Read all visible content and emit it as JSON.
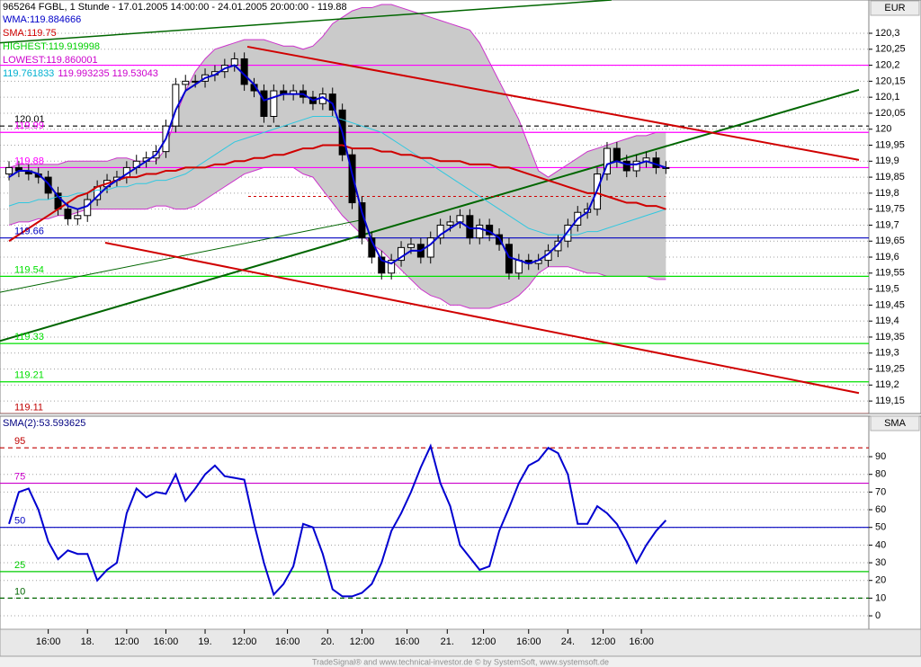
{
  "header": {
    "title": "965264  FGBL, 1 Stunde - 17.01.2005 14:00:00 - 24.01.2005 20:00:00 - 119.88",
    "currency": "EUR"
  },
  "legend": [
    [
      {
        "text": "WMA:119.884666",
        "color": "#0000c8"
      }
    ],
    [
      {
        "text": "SMA:119.75",
        "color": "#d00000"
      }
    ],
    [
      {
        "text": "HIGHEST:119.919998",
        "color": "#00d000"
      }
    ],
    [
      {
        "text": "LOWEST:119.860001",
        "color": "#cc00cc"
      }
    ],
    [
      {
        "text": "119.761833",
        "color": "#00b0d0"
      },
      {
        "text": "119.993235 119.53043",
        "color": "#cc00cc"
      }
    ]
  ],
  "footer": "TradeSignal® and www.technical-investor.de © by SystemSoft, www.systemsoft.de",
  "chart_data": [
    {
      "type": "candlestick",
      "open": [
        119.86,
        119.88,
        119.87,
        119.86,
        119.85,
        119.8,
        119.75,
        119.72,
        119.73,
        119.78,
        119.82,
        119.84,
        119.85,
        119.88,
        119.9,
        119.91,
        119.93,
        120.01,
        120.14,
        120.15,
        120.15,
        120.17,
        120.18,
        120.2,
        120.22,
        120.14,
        120.12,
        120.04,
        120.12,
        120.11,
        120.12,
        120.1,
        120.08,
        120.11,
        120.06,
        119.92,
        119.77,
        119.66,
        119.6,
        119.55,
        119.59,
        119.63,
        119.64,
        119.6,
        119.66,
        119.7,
        119.71,
        119.73,
        119.66,
        119.7,
        119.67,
        119.64,
        119.55,
        119.59,
        119.58,
        119.59,
        119.62,
        119.65,
        119.7,
        119.74,
        119.75,
        119.86,
        119.94,
        119.9,
        119.87,
        119.9,
        119.91,
        119.88
      ],
      "high": [
        119.9,
        119.9,
        119.89,
        119.88,
        119.87,
        119.82,
        119.77,
        119.75,
        119.8,
        119.84,
        119.86,
        119.87,
        119.9,
        119.92,
        119.93,
        119.95,
        120.03,
        120.16,
        120.17,
        120.17,
        120.19,
        120.2,
        120.22,
        120.24,
        120.24,
        120.16,
        120.14,
        120.14,
        120.14,
        120.14,
        120.14,
        120.12,
        120.13,
        120.13,
        120.08,
        119.94,
        119.79,
        119.68,
        119.62,
        119.61,
        119.65,
        119.66,
        119.66,
        119.68,
        119.72,
        119.73,
        119.75,
        119.75,
        119.72,
        119.72,
        119.69,
        119.66,
        119.61,
        119.61,
        119.61,
        119.64,
        119.67,
        119.72,
        119.76,
        119.77,
        119.88,
        119.96,
        119.96,
        119.92,
        119.92,
        119.93,
        119.93,
        119.9
      ],
      "low": [
        119.84,
        119.85,
        119.84,
        119.83,
        119.78,
        119.73,
        119.7,
        119.7,
        119.71,
        119.76,
        119.8,
        119.82,
        119.83,
        119.86,
        119.88,
        119.89,
        119.91,
        119.99,
        120.12,
        120.13,
        120.13,
        120.15,
        120.16,
        120.18,
        120.12,
        120.1,
        120.02,
        120.02,
        120.09,
        120.09,
        120.08,
        120.06,
        120.06,
        120.04,
        119.9,
        119.75,
        119.64,
        119.58,
        119.53,
        119.53,
        119.57,
        119.61,
        119.58,
        119.58,
        119.64,
        119.68,
        119.69,
        119.64,
        119.64,
        119.65,
        119.62,
        119.53,
        119.53,
        119.56,
        119.56,
        119.57,
        119.6,
        119.63,
        119.68,
        119.72,
        119.73,
        119.84,
        119.88,
        119.85,
        119.85,
        119.88,
        119.86,
        119.86
      ],
      "close": [
        119.88,
        119.87,
        119.86,
        119.85,
        119.8,
        119.75,
        119.72,
        119.73,
        119.78,
        119.82,
        119.84,
        119.85,
        119.88,
        119.9,
        119.91,
        119.93,
        120.01,
        120.14,
        120.15,
        120.15,
        120.17,
        120.18,
        120.2,
        120.22,
        120.14,
        120.12,
        120.04,
        120.12,
        120.11,
        120.12,
        120.1,
        120.08,
        120.11,
        120.06,
        119.92,
        119.77,
        119.66,
        119.6,
        119.55,
        119.59,
        119.63,
        119.64,
        119.6,
        119.66,
        119.7,
        119.71,
        119.73,
        119.66,
        119.7,
        119.67,
        119.64,
        119.55,
        119.59,
        119.58,
        119.59,
        119.62,
        119.65,
        119.7,
        119.74,
        119.75,
        119.86,
        119.94,
        119.9,
        119.87,
        119.9,
        119.91,
        119.88,
        119.88
      ],
      "up_color": "#ffffff",
      "down_color": "#000000",
      "xlim": [
        -0.92,
        87.7
      ],
      "xticks": [
        {
          "value": 4,
          "label": "16:00"
        },
        {
          "value": 8,
          "label": "18."
        },
        {
          "value": 12,
          "label": "12:00"
        },
        {
          "value": 16,
          "label": "16:00"
        },
        {
          "value": 20,
          "label": "19."
        },
        {
          "value": 24,
          "label": "12:00"
        },
        {
          "value": 28.4,
          "label": "16:00"
        },
        {
          "value": 32.5,
          "label": "20."
        },
        {
          "value": 36,
          "label": "12:00"
        },
        {
          "value": 40.6,
          "label": "16:00"
        },
        {
          "value": 44.7,
          "label": "21."
        },
        {
          "value": 48.4,
          "label": "12:00"
        },
        {
          "value": 53,
          "label": "16:00"
        },
        {
          "value": 57,
          "label": "24."
        },
        {
          "value": 60.6,
          "label": "12:00"
        },
        {
          "value": 64.5,
          "label": "16:00"
        }
      ],
      "ylim": [
        119.111,
        120.404
      ],
      "yticks": [
        {
          "value": 120.3,
          "label": "120,3"
        },
        {
          "value": 120.25,
          "label": "120,25"
        },
        {
          "value": 120.2,
          "label": "120,2"
        },
        {
          "value": 120.15,
          "label": "120,15"
        },
        {
          "value": 120.1,
          "label": "120,1"
        },
        {
          "value": 120.05,
          "label": "120,05"
        },
        120,
        {
          "value": 119.95,
          "label": "119,95"
        },
        {
          "value": 119.9,
          "label": "119,9"
        },
        {
          "value": 119.85,
          "label": "119,85"
        },
        {
          "value": 119.8,
          "label": "119,8"
        },
        {
          "value": 119.75,
          "label": "119,75"
        },
        {
          "value": 119.7,
          "label": "119,7"
        },
        {
          "value": 119.65,
          "label": "119,65"
        },
        {
          "value": 119.6,
          "label": "119,6"
        },
        {
          "value": 119.55,
          "label": "119,55"
        },
        {
          "value": 119.5,
          "label": "119,5"
        },
        {
          "value": 119.45,
          "label": "119,45"
        },
        {
          "value": 119.4,
          "label": "119,4"
        },
        {
          "value": 119.35,
          "label": "119,35"
        },
        {
          "value": 119.3,
          "label": "119,3"
        },
        {
          "value": 119.25,
          "label": "119,25"
        },
        {
          "value": 119.2,
          "label": "119,2"
        },
        {
          "value": 119.15,
          "label": "119,15"
        }
      ],
      "grid": true,
      "band": {
        "fill": "#cacaca",
        "edge": "#cc33cc",
        "upper": [
          119.88,
          119.89,
          119.89,
          119.89,
          119.89,
          119.89,
          119.9,
          119.9,
          119.9,
          119.9,
          119.9,
          119.91,
          119.91,
          119.9,
          119.9,
          119.9,
          119.94,
          120.04,
          120.12,
          120.18,
          120.22,
          120.25,
          120.26,
          120.27,
          120.28,
          120.28,
          120.28,
          120.27,
          120.26,
          120.26,
          120.25,
          120.26,
          120.29,
          120.33,
          120.35,
          120.37,
          120.38,
          120.38,
          120.39,
          120.39,
          120.38,
          120.37,
          120.36,
          120.35,
          120.34,
          120.33,
          120.32,
          120.31,
          120.27,
          120.21,
          120.15,
          120.09,
          120.03,
          119.95,
          119.87,
          119.85,
          119.87,
          119.89,
          119.91,
          119.93,
          119.94,
          119.95,
          119.96,
          119.97,
          119.98,
          119.98,
          119.99,
          119.99
        ],
        "lower": [
          119.7,
          119.71,
          119.71,
          119.72,
          119.72,
          119.73,
          119.73,
          119.74,
          119.75,
          119.75,
          119.75,
          119.75,
          119.75,
          119.75,
          119.75,
          119.76,
          119.76,
          119.75,
          119.75,
          119.76,
          119.78,
          119.8,
          119.82,
          119.84,
          119.86,
          119.87,
          119.88,
          119.88,
          119.88,
          119.88,
          119.86,
          119.85,
          119.81,
          119.77,
          119.73,
          119.7,
          119.67,
          119.64,
          119.62,
          119.59,
          119.56,
          119.53,
          119.5,
          119.48,
          119.47,
          119.45,
          119.45,
          119.44,
          119.44,
          119.44,
          119.45,
          119.46,
          119.48,
          119.51,
          119.55,
          119.57,
          119.57,
          119.57,
          119.56,
          119.55,
          119.55,
          119.54,
          119.54,
          119.54,
          119.54,
          119.54,
          119.53,
          119.53
        ]
      },
      "lines": [
        {
          "color": "#30c8e0",
          "width": 1,
          "values": [
            119.76,
            119.77,
            119.77,
            119.78,
            119.78,
            119.79,
            119.79,
            119.8,
            119.8,
            119.81,
            119.81,
            119.82,
            119.82,
            119.83,
            119.83,
            119.84,
            119.84,
            119.85,
            119.86,
            119.88,
            119.9,
            119.92,
            119.94,
            119.96,
            119.97,
            119.98,
            119.99,
            120.0,
            120.01,
            120.02,
            120.03,
            120.04,
            120.04,
            120.04,
            120.03,
            120.02,
            120.01,
            120.0,
            119.99,
            119.97,
            119.95,
            119.93,
            119.91,
            119.89,
            119.87,
            119.85,
            119.83,
            119.81,
            119.79,
            119.77,
            119.75,
            119.73,
            119.71,
            119.69,
            119.68,
            119.67,
            119.67,
            119.67,
            119.67,
            119.68,
            119.68,
            119.69,
            119.7,
            119.71,
            119.72,
            119.73,
            119.74,
            119.75
          ]
        },
        {
          "color": "#d00000",
          "width": 2,
          "values": [
            119.65,
            119.67,
            119.69,
            119.71,
            119.73,
            119.75,
            119.77,
            119.79,
            119.8,
            119.82,
            119.83,
            119.84,
            119.85,
            119.85,
            119.86,
            119.86,
            119.87,
            119.87,
            119.88,
            119.88,
            119.88,
            119.89,
            119.89,
            119.9,
            119.9,
            119.91,
            119.91,
            119.92,
            119.92,
            119.93,
            119.94,
            119.94,
            119.95,
            119.95,
            119.95,
            119.94,
            119.94,
            119.94,
            119.93,
            119.93,
            119.92,
            119.92,
            119.91,
            119.91,
            119.9,
            119.9,
            119.9,
            119.89,
            119.89,
            119.89,
            119.88,
            119.88,
            119.87,
            119.86,
            119.85,
            119.84,
            119.83,
            119.82,
            119.81,
            119.8,
            119.8,
            119.79,
            119.78,
            119.77,
            119.77,
            119.76,
            119.76,
            119.75
          ]
        },
        {
          "color": "#0000d0",
          "width": 2,
          "values": [
            119.85,
            119.87,
            119.87,
            119.86,
            119.83,
            119.79,
            119.76,
            119.75,
            119.76,
            119.79,
            119.82,
            119.84,
            119.86,
            119.88,
            119.9,
            119.92,
            119.97,
            120.06,
            120.12,
            120.14,
            120.16,
            120.17,
            120.19,
            120.2,
            120.17,
            120.14,
            120.09,
            120.1,
            120.11,
            120.11,
            120.11,
            120.09,
            120.1,
            120.08,
            119.99,
            119.86,
            119.74,
            119.65,
            119.59,
            119.58,
            119.6,
            119.62,
            119.62,
            119.64,
            119.67,
            119.69,
            119.71,
            119.69,
            119.69,
            119.68,
            119.66,
            119.6,
            119.59,
            119.58,
            119.59,
            119.61,
            119.64,
            119.68,
            119.72,
            119.74,
            119.81,
            119.89,
            119.9,
            119.89,
            119.89,
            119.9,
            119.89,
            119.88
          ]
        }
      ],
      "hlines": [
        {
          "value": 120.2,
          "color": "#ff00ff",
          "dash": false,
          "labeled": false
        },
        {
          "value": 120.01,
          "color": "#000000",
          "dash": true,
          "labeled": true
        },
        {
          "value": 119.99,
          "color": "#ff00ff",
          "dash": false,
          "labeled": true
        },
        {
          "value": 119.88,
          "color": "#ff00ff",
          "dash": false,
          "labeled": true
        },
        {
          "value": 119.66,
          "color": "#0000c0",
          "dash": false,
          "labeled": true
        },
        {
          "value": 119.54,
          "color": "#00e000",
          "dash": false,
          "labeled": true
        },
        {
          "value": 119.33,
          "color": "#00e000",
          "dash": false,
          "labeled": true
        },
        {
          "value": 119.21,
          "color": "#00e000",
          "dash": false,
          "labeled": true
        },
        {
          "value": 119.11,
          "color": "#c00000",
          "dash": false,
          "labeled": true
        }
      ],
      "trendlines": [
        {
          "x": [
            -0.92,
            61.46
          ],
          "y": [
            120.27,
            120.404
          ],
          "color": "#006600",
          "width": 1.5,
          "dash": false
        },
        {
          "x": [
            -0.92,
            86.69
          ],
          "y": [
            119.338,
            120.123
          ],
          "color": "#006600",
          "width": 2,
          "dash": false
        },
        {
          "x": [
            -0.92,
            35.77
          ],
          "y": [
            119.49,
            119.715
          ],
          "color": "#006600",
          "width": 1,
          "dash": false
        },
        {
          "x": [
            24.31,
            86.69
          ],
          "y": [
            120.258,
            119.904
          ],
          "color": "#d00000",
          "width": 2,
          "dash": false
        },
        {
          "x": [
            9.81,
            86.69
          ],
          "y": [
            119.645,
            119.175
          ],
          "color": "#d00000",
          "width": 2,
          "dash": false
        },
        {
          "x": [
            24.4,
            67
          ],
          "y": [
            119.79,
            119.79
          ],
          "color": "#d00000",
          "width": 1,
          "dash": true
        }
      ]
    },
    {
      "type": "line",
      "label": "SMA(2):53.593625",
      "axis_title": "SMA",
      "color": "#0000d0",
      "values": [
        52,
        70,
        72,
        60,
        42,
        32,
        37,
        35,
        35,
        20,
        26,
        30,
        58,
        72,
        67,
        70,
        69,
        80,
        65,
        72,
        80,
        85,
        79,
        78,
        77,
        52,
        30,
        12,
        18,
        28,
        52,
        50,
        35,
        15,
        11,
        11,
        13,
        18,
        30,
        48,
        58,
        70,
        84,
        96,
        75,
        62,
        40,
        33,
        26,
        28,
        48,
        61,
        75,
        85,
        88,
        95,
        92,
        80,
        52,
        52,
        62,
        58,
        52,
        42,
        30,
        40,
        48,
        54
      ],
      "xlim": [
        -0.92,
        87.7
      ],
      "ylim": [
        -7.6,
        112.9
      ],
      "yticks": [
        0,
        10,
        20,
        30,
        40,
        50,
        60,
        70,
        80,
        90
      ],
      "grid": true,
      "hlines": [
        {
          "value": 95,
          "color": "#c00000",
          "dash": true,
          "labeled": true
        },
        {
          "value": 75,
          "color": "#cc00cc",
          "dash": false,
          "labeled": true
        },
        {
          "value": 50,
          "color": "#0000c0",
          "dash": false,
          "labeled": true
        },
        {
          "value": 25,
          "color": "#00cc00",
          "dash": false,
          "labeled": true
        },
        {
          "value": 10,
          "color": "#006600",
          "dash": true,
          "labeled": true
        }
      ]
    }
  ]
}
